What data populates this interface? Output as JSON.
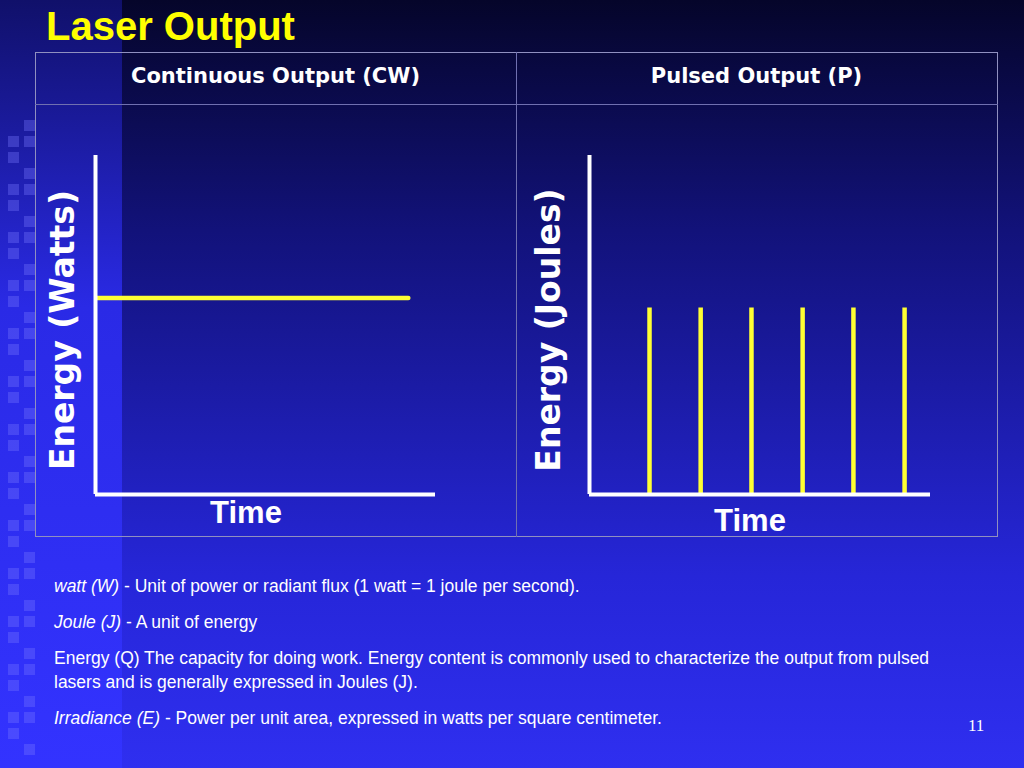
{
  "page_title": "Laser Output",
  "chart_data": [
    {
      "type": "line",
      "title": "Continuous Output (CW)",
      "x_label": "Time",
      "y_label": "Energy (Watts)",
      "x": [
        0,
        0.92
      ],
      "values": [
        0.58,
        0.58
      ],
      "color": "#ffff33",
      "xlim": [
        0,
        1
      ],
      "ylim": [
        0,
        1
      ],
      "xticks": [],
      "yticks": [],
      "tick_labels": false,
      "grid": false
    },
    {
      "type": "pulse",
      "title": "Pulsed Output (P)",
      "x_label": "Time",
      "y_label": "Energy (Joules)",
      "x": [
        0.176,
        0.326,
        0.475,
        0.625,
        0.774,
        0.924
      ],
      "values": [
        0.55,
        0.55,
        0.55,
        0.55,
        0.55,
        0.55
      ],
      "color": "#ffff33",
      "xlim": [
        0,
        1
      ],
      "ylim": [
        0,
        1
      ],
      "xticks": [],
      "yticks": [],
      "tick_labels": false,
      "grid": false
    }
  ],
  "definitions": [
    {
      "term": "watt (W)",
      "text": "- Unit of power or radiant flux (1 watt = 1 joule per second).",
      "italic": true
    },
    {
      "term": "Joule (J)",
      "text": "- A unit of energy",
      "italic": true
    },
    {
      "term": "Energy (Q)",
      "text": "The capacity for doing work. Energy content is commonly used to characterize the output from pulsed lasers and is generally expressed in Joules (J).",
      "italic": false
    },
    {
      "term": "Irradiance (E)",
      "text": "- Power per unit area, expressed in watts per square centimeter.",
      "italic": true
    }
  ],
  "page_number": "11"
}
